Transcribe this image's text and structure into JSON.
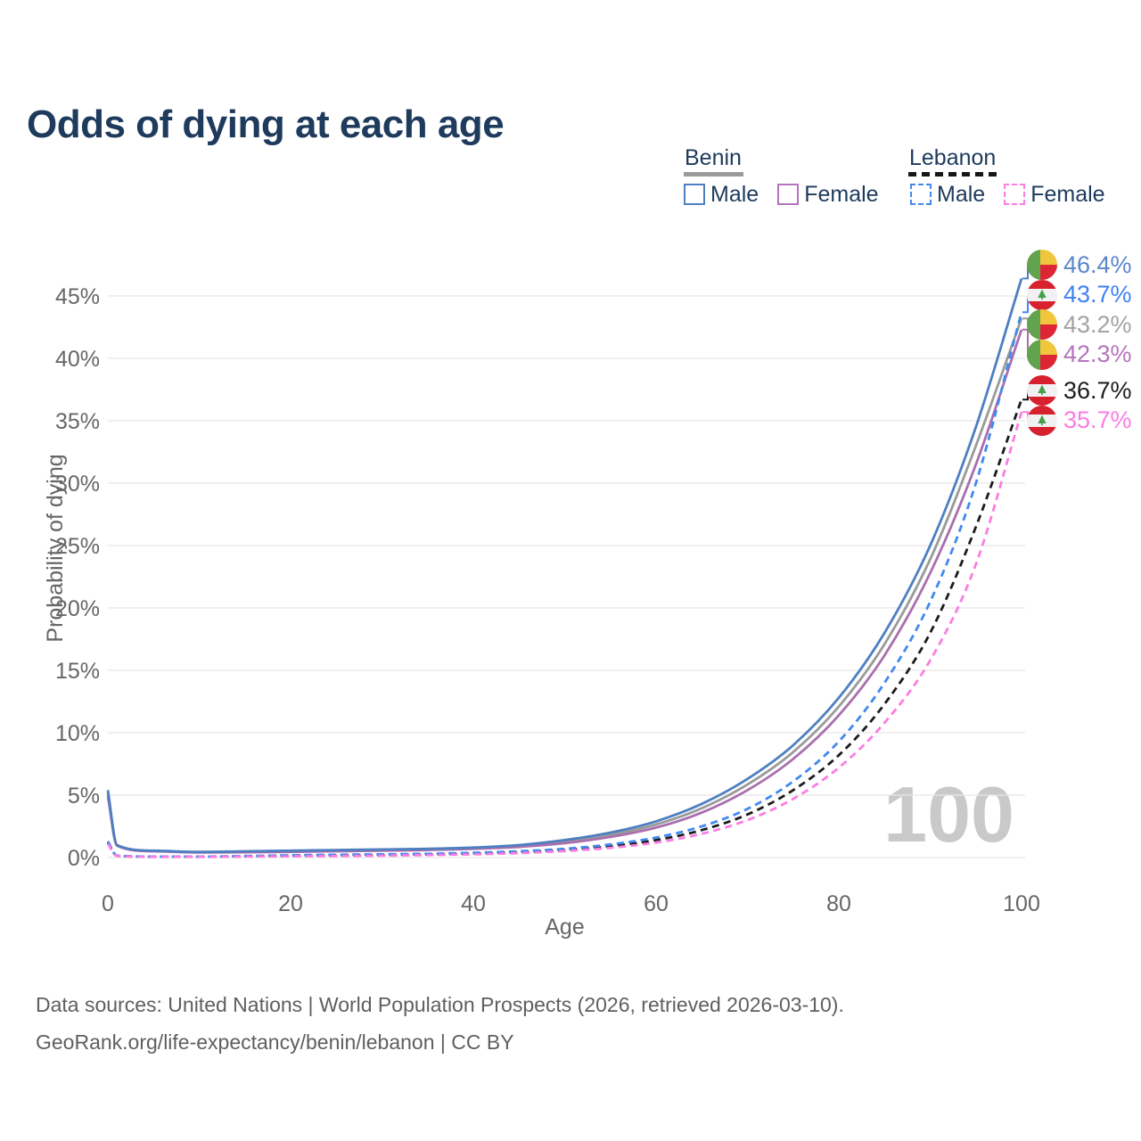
{
  "title": "Odds of dying at each age",
  "age_indicator": "100",
  "legend": {
    "benin": {
      "label": "Benin",
      "male_label": "Male",
      "female_label": "Female",
      "line_style": "solid"
    },
    "lebanon": {
      "label": "Lebanon",
      "male_label": "Male",
      "female_label": "Female",
      "line_style": "dashed"
    }
  },
  "footer": {
    "line1": "Data sources: United Nations | World Population Prospects (2026, retrieved 2026-03-10).",
    "line2": "GeoRank.org/life-expectancy/benin/lebanon | CC BY"
  },
  "colors": {
    "title_text": "#1e3a5c",
    "axis_text": "#666666",
    "gridline": "#e8e8e8",
    "watermark": "#c9c9c9",
    "benin_underline": "#9a9a9a",
    "lebanon_underline": "#161616",
    "benin_male": "#4e7fc1",
    "benin_female": "#a96fae",
    "benin_both": "#9a9a9a",
    "lebanon_male": "#4189ef",
    "lebanon_female": "#fb7ce3",
    "lebanon_both": "#1c1c1c"
  },
  "chart_data": {
    "type": "line",
    "title": "Odds of dying at each age",
    "xlabel": "Age",
    "ylabel": "Probability of dying",
    "x_ages": [
      0,
      1,
      5,
      10,
      15,
      20,
      25,
      30,
      35,
      40,
      45,
      50,
      55,
      60,
      65,
      70,
      75,
      80,
      85,
      90,
      95,
      100
    ],
    "xlim": [
      0,
      100
    ],
    "ylim": [
      0,
      47.5
    ],
    "xticks": [
      0,
      20,
      40,
      60,
      80,
      100
    ],
    "yticks_pct": [
      0,
      5,
      10,
      15,
      20,
      25,
      30,
      35,
      40,
      45
    ],
    "grid": "horizontal",
    "legend_position": "top-right",
    "series": [
      {
        "name": "Benin Both sexes",
        "country": "Benin",
        "sex": "Both",
        "line_style": "solid",
        "color": "#9a9a9a",
        "label_color": "#a3a3a3",
        "flag_icon": "benin-flag-icon",
        "end_label": "43.2%",
        "values_pct": [
          5.15,
          0.98,
          0.52,
          0.42,
          0.46,
          0.5,
          0.55,
          0.6,
          0.65,
          0.75,
          0.92,
          1.27,
          1.82,
          2.65,
          3.95,
          5.85,
          8.45,
          12.1,
          17.1,
          23.9,
          33.0,
          43.2
        ]
      },
      {
        "name": "Benin Female",
        "country": "Benin",
        "sex": "Female",
        "line_style": "solid",
        "color": "#a96fae",
        "label_color": "#b574bd",
        "flag_icon": "benin-flag-icon",
        "end_label": "42.3%",
        "values_pct": [
          4.9,
          0.95,
          0.5,
          0.4,
          0.42,
          0.45,
          0.5,
          0.55,
          0.6,
          0.7,
          0.85,
          1.15,
          1.65,
          2.4,
          3.6,
          5.4,
          7.9,
          11.4,
          16.2,
          22.8,
          31.5,
          42.3
        ]
      },
      {
        "name": "Benin Male",
        "country": "Benin",
        "sex": "Male",
        "line_style": "solid",
        "color": "#4e7fc1",
        "label_color": "#5b86c8",
        "flag_icon": "benin-flag-icon",
        "end_label": "46.4%",
        "values_pct": [
          5.4,
          1.0,
          0.55,
          0.45,
          0.5,
          0.55,
          0.6,
          0.65,
          0.7,
          0.8,
          1.0,
          1.4,
          2.0,
          2.9,
          4.3,
          6.3,
          9.0,
          12.8,
          18.0,
          25.0,
          34.5,
          46.4
        ]
      },
      {
        "name": "Lebanon Both sexes",
        "country": "Lebanon",
        "sex": "Both",
        "line_style": "dashed",
        "color": "#1c1c1c",
        "label_color": "#1c1c1c",
        "flag_icon": "lebanon-flag-icon",
        "end_label": "36.7%",
        "values_pct": [
          1.2,
          0.14,
          0.07,
          0.07,
          0.1,
          0.14,
          0.17,
          0.2,
          0.25,
          0.32,
          0.43,
          0.61,
          0.91,
          1.4,
          2.2,
          3.45,
          5.4,
          8.2,
          12.3,
          18.0,
          26.5,
          36.7
        ]
      },
      {
        "name": "Lebanon Male",
        "country": "Lebanon",
        "sex": "Male",
        "line_style": "dashed",
        "color": "#4189ef",
        "label_color": "#3f82f2",
        "flag_icon": "lebanon-flag-icon",
        "end_label": "43.7%",
        "values_pct": [
          1.3,
          0.15,
          0.08,
          0.08,
          0.12,
          0.18,
          0.22,
          0.26,
          0.3,
          0.38,
          0.5,
          0.7,
          1.05,
          1.6,
          2.5,
          3.9,
          6.1,
          9.3,
          14.0,
          20.5,
          30.0,
          43.7
        ]
      },
      {
        "name": "Lebanon Female",
        "country": "Lebanon",
        "sex": "Female",
        "line_style": "dashed",
        "color": "#fb7ce3",
        "label_color": "#fb7ce3",
        "flag_icon": "lebanon-flag-icon",
        "end_label": "35.7%",
        "values_pct": [
          1.1,
          0.12,
          0.06,
          0.06,
          0.08,
          0.1,
          0.12,
          0.15,
          0.2,
          0.26,
          0.36,
          0.52,
          0.78,
          1.2,
          1.9,
          3.0,
          4.7,
          7.2,
          10.8,
          15.8,
          23.5,
          35.7
        ]
      }
    ]
  }
}
